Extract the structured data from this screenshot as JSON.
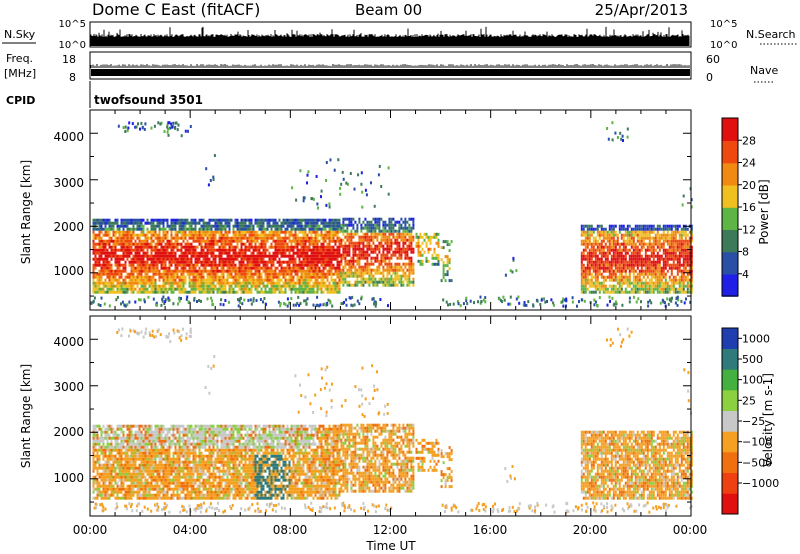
{
  "header": {
    "title": "Dome C East (fitACF)",
    "beam": "Beam 00",
    "date": "25/Apr/2013"
  },
  "top_panels": {
    "nsky_label": "N.Sky",
    "nsky_ticks": [
      "10^5",
      "10^0"
    ],
    "nsearch_label": "N.Search",
    "nsearch_ticks": [
      "10^5",
      "10^0"
    ],
    "freq_label": "Freq.",
    "freq_unit": "[MHz]",
    "freq_ticks": [
      "18",
      "8"
    ],
    "nave_label": "Nave",
    "nave_ticks": [
      "60",
      "0"
    ],
    "cpid_label": "CPID",
    "cpid_value": "twofsound 3501"
  },
  "chart_data": [
    {
      "type": "heatmap",
      "name": "power",
      "ylabel": "Slant Range [km]",
      "ylim": [
        200,
        4500
      ],
      "yticks": [
        "1000",
        "2000",
        "3000",
        "4000"
      ],
      "xlim": [
        0,
        24
      ],
      "colorbar": {
        "label": "Power [dB]",
        "tick_labels": [
          "4",
          "8",
          "12",
          "16",
          "20",
          "24",
          "28"
        ],
        "colors": [
          "#1f1fe6",
          "#2a4fa6",
          "#3d7a5a",
          "#5fb446",
          "#f0c020",
          "#f08a10",
          "#ee4a10",
          "#e01010"
        ]
      },
      "echo_regions": [
        {
          "t": [
            0.0,
            10.0
          ],
          "r": [
            500,
            2100
          ],
          "level": "high"
        },
        {
          "t": [
            10.0,
            13.0
          ],
          "r": [
            700,
            2100
          ],
          "level": "high"
        },
        {
          "t": [
            13.8,
            14.4
          ],
          "r": [
            800,
            1800
          ],
          "level": "medium"
        },
        {
          "t": [
            19.5,
            24.0
          ],
          "r": [
            500,
            2000
          ],
          "level": "high"
        }
      ]
    },
    {
      "type": "heatmap",
      "name": "velocity",
      "ylabel": "Slant Range [km]",
      "ylim": [
        200,
        4500
      ],
      "yticks": [
        "1000",
        "2000",
        "3000",
        "4000"
      ],
      "xlim": [
        0,
        24
      ],
      "xlabel": "Time UT",
      "xticks": [
        "00:00",
        "04:00",
        "08:00",
        "12:00",
        "16:00",
        "20:00",
        "00:00"
      ],
      "colorbar": {
        "label": "Velocity [m s-1]",
        "tick_labels": [
          "1000",
          "500",
          "100",
          "25",
          "−25",
          "−100",
          "−500",
          "−1000"
        ],
        "colors": [
          "#1f3fb0",
          "#2f7a7a",
          "#44b040",
          "#8ad040",
          "#c8c8c8",
          "#f5a020",
          "#f07010",
          "#ee4010",
          "#e01010"
        ]
      }
    }
  ]
}
